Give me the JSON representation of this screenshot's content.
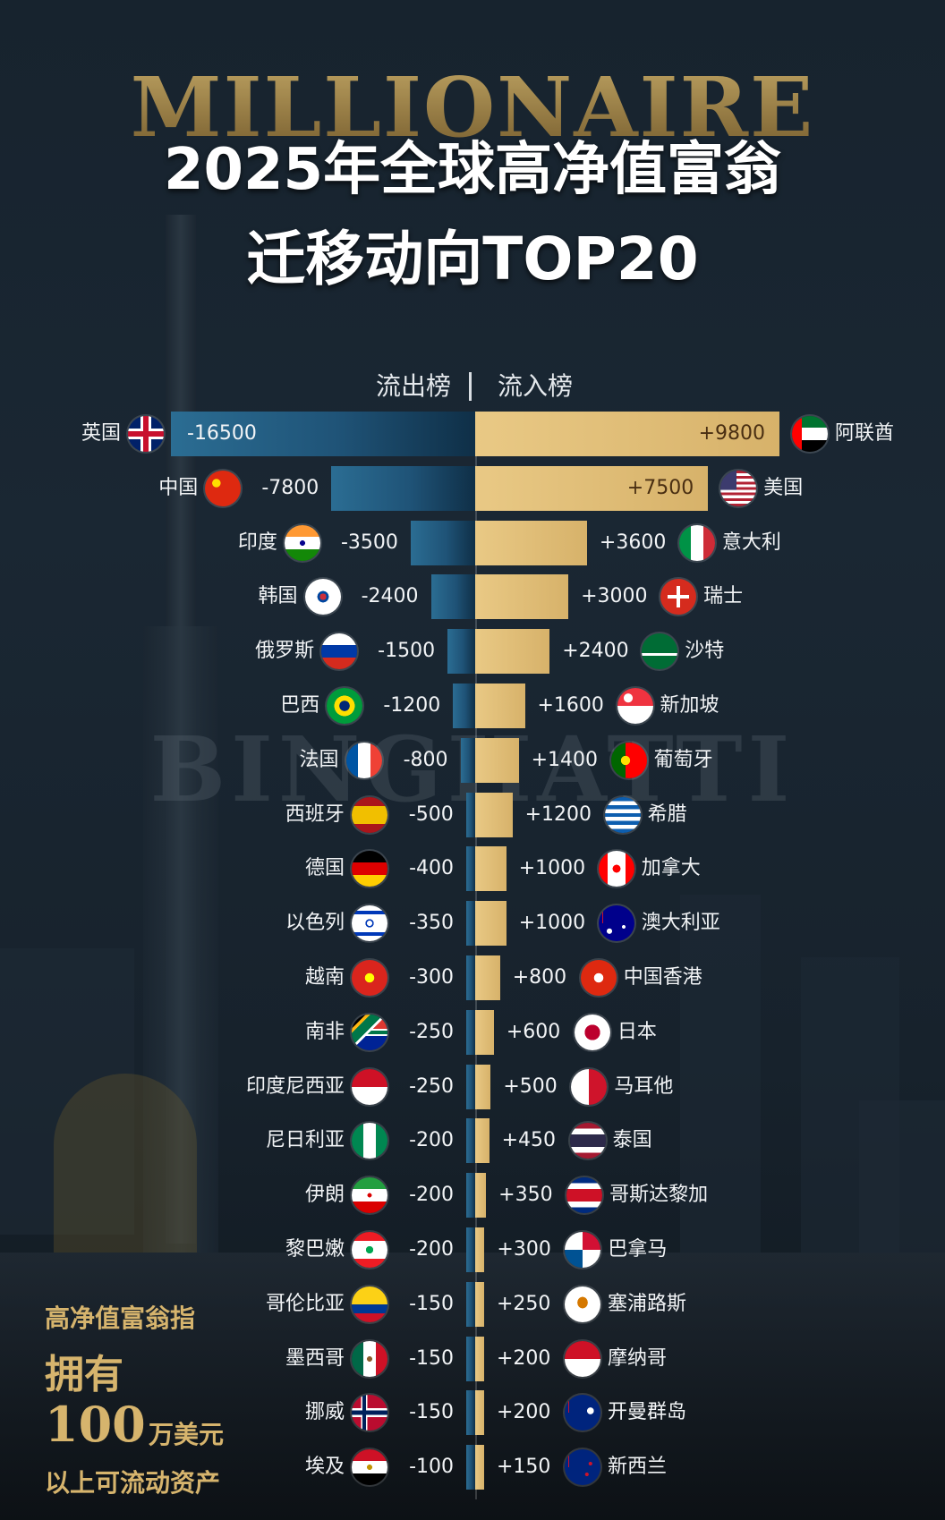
{
  "background_text": {
    "top": "MILLIONAIRE",
    "middle": "BINGHATTI"
  },
  "title": {
    "line1": "2025年全球高净值富翁",
    "line2": "迁移动向TOP20"
  },
  "header": {
    "outflow": "流出榜",
    "inflow": "流入榜"
  },
  "colors": {
    "outflow_bar": "#1f5377",
    "inflow_bar": "#d7b26a",
    "title": "#ffffff",
    "note": "#d6b46d"
  },
  "chart_data": {
    "type": "bar",
    "orientation": "horizontal-diverging",
    "outflow": [
      {
        "country": "英国",
        "value": -16500,
        "label": "-16500"
      },
      {
        "country": "中国",
        "value": -7800,
        "label": "-7800"
      },
      {
        "country": "印度",
        "value": -3500,
        "label": "-3500"
      },
      {
        "country": "韩国",
        "value": -2400,
        "label": "-2400"
      },
      {
        "country": "俄罗斯",
        "value": -1500,
        "label": "-1500"
      },
      {
        "country": "巴西",
        "value": -1200,
        "label": "-1200"
      },
      {
        "country": "法国",
        "value": -800,
        "label": "-800"
      },
      {
        "country": "西班牙",
        "value": -500,
        "label": "-500"
      },
      {
        "country": "德国",
        "value": -400,
        "label": "-400"
      },
      {
        "country": "以色列",
        "value": -350,
        "label": "-350"
      },
      {
        "country": "越南",
        "value": -300,
        "label": "-300"
      },
      {
        "country": "南非",
        "value": -250,
        "label": "-250"
      },
      {
        "country": "印度尼西亚",
        "value": -250,
        "label": "-250"
      },
      {
        "country": "尼日利亚",
        "value": -200,
        "label": "-200"
      },
      {
        "country": "伊朗",
        "value": -200,
        "label": "-200"
      },
      {
        "country": "黎巴嫩",
        "value": -200,
        "label": "-200"
      },
      {
        "country": "哥伦比亚",
        "value": -150,
        "label": "-150"
      },
      {
        "country": "墨西哥",
        "value": -150,
        "label": "-150"
      },
      {
        "country": "挪威",
        "value": -150,
        "label": "-150"
      },
      {
        "country": "埃及",
        "value": -100,
        "label": "-100"
      }
    ],
    "inflow": [
      {
        "country": "阿联酋",
        "value": 9800,
        "label": "+9800"
      },
      {
        "country": "美国",
        "value": 7500,
        "label": "+7500"
      },
      {
        "country": "意大利",
        "value": 3600,
        "label": "+3600"
      },
      {
        "country": "瑞士",
        "value": 3000,
        "label": "+3000"
      },
      {
        "country": "沙特",
        "value": 2400,
        "label": "+2400"
      },
      {
        "country": "新加坡",
        "value": 1600,
        "label": "+1600"
      },
      {
        "country": "葡萄牙",
        "value": 1400,
        "label": "+1400"
      },
      {
        "country": "希腊",
        "value": 1200,
        "label": "+1200"
      },
      {
        "country": "加拿大",
        "value": 1000,
        "label": "+1000"
      },
      {
        "country": "澳大利亚",
        "value": 1000,
        "label": "+1000"
      },
      {
        "country": "中国香港",
        "value": 800,
        "label": "+800"
      },
      {
        "country": "日本",
        "value": 600,
        "label": "+600"
      },
      {
        "country": "马耳他",
        "value": 500,
        "label": "+500"
      },
      {
        "country": "泰国",
        "value": 450,
        "label": "+450"
      },
      {
        "country": "哥斯达黎加",
        "value": 350,
        "label": "+350"
      },
      {
        "country": "巴拿马",
        "value": 300,
        "label": "+300"
      },
      {
        "country": "塞浦路斯",
        "value": 250,
        "label": "+250"
      },
      {
        "country": "摩纳哥",
        "value": 200,
        "label": "+200"
      },
      {
        "country": "开曼群岛",
        "value": 200,
        "label": "+200"
      },
      {
        "country": "新西兰",
        "value": 150,
        "label": "+150"
      }
    ],
    "outflow_flag_icons": [
      "uk-flag-icon",
      "china-flag-icon",
      "india-flag-icon",
      "korea-flag-icon",
      "russia-flag-icon",
      "brazil-flag-icon",
      "france-flag-icon",
      "spain-flag-icon",
      "germany-flag-icon",
      "israel-flag-icon",
      "vietnam-flag-icon",
      "south-africa-flag-icon",
      "indonesia-flag-icon",
      "nigeria-flag-icon",
      "iran-flag-icon",
      "lebanon-flag-icon",
      "colombia-flag-icon",
      "mexico-flag-icon",
      "norway-flag-icon",
      "egypt-flag-icon"
    ],
    "inflow_flag_icons": [
      "uae-flag-icon",
      "usa-flag-icon",
      "italy-flag-icon",
      "switzerland-flag-icon",
      "saudi-flag-icon",
      "singapore-flag-icon",
      "portugal-flag-icon",
      "greece-flag-icon",
      "canada-flag-icon",
      "australia-flag-icon",
      "hong-kong-flag-icon",
      "japan-flag-icon",
      "malta-flag-icon",
      "thailand-flag-icon",
      "costa-rica-flag-icon",
      "panama-flag-icon",
      "cyprus-flag-icon",
      "monaco-flag-icon",
      "cayman-flag-icon",
      "new-zealand-flag-icon"
    ]
  },
  "note": {
    "line1": "高净值富翁指",
    "line2": "拥有",
    "amount": "100",
    "unit": "万美元",
    "line3": "以上可流动资产"
  }
}
